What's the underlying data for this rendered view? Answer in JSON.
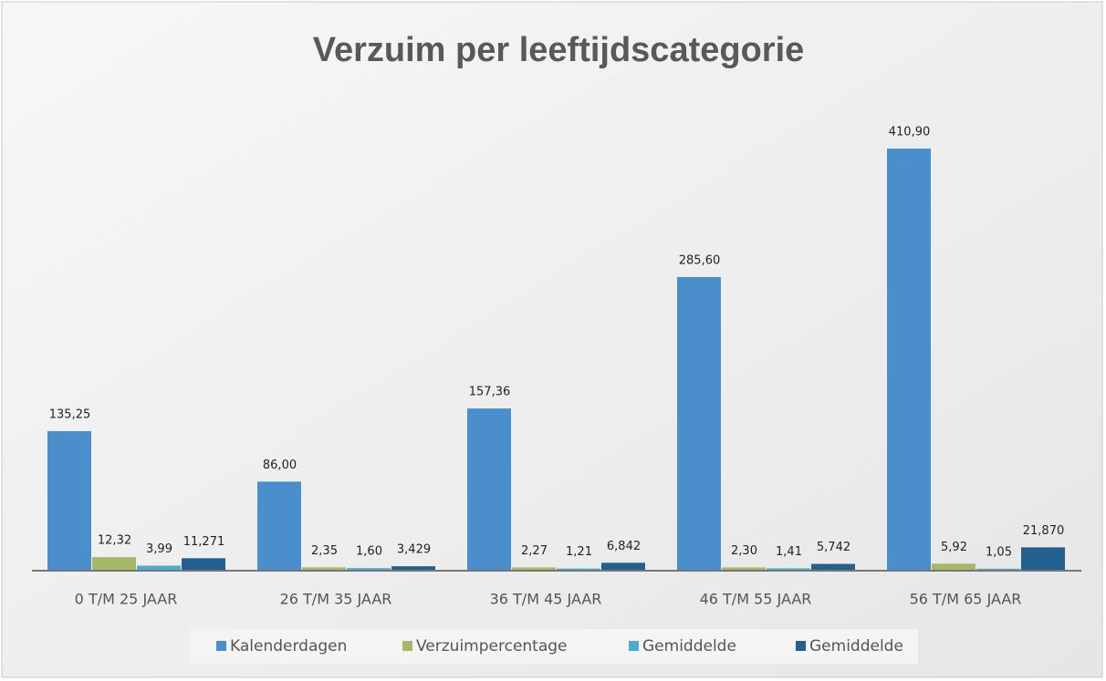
{
  "chart_data": {
    "type": "bar",
    "title": "Verzuim per leeftijdscategorie",
    "categories": [
      "0 T/M 25 JAAR",
      "26 T/M 35 JAAR",
      "36 T/M 45 JAAR",
      "46 T/M 55 JAAR",
      "56 T/M 65 JAAR"
    ],
    "series": [
      {
        "name": "Kalenderdagen",
        "color": "#4a8fcb",
        "values": [
          135.25,
          86.0,
          157.36,
          285.6,
          410.9
        ],
        "value_labels": [
          "135,25",
          "86,00",
          "157,36",
          "285,60",
          "410,90"
        ]
      },
      {
        "name": "Verzuimpercentage",
        "color": "#a4b868",
        "values": [
          12.32,
          2.35,
          2.27,
          2.3,
          5.92
        ],
        "value_labels": [
          "12,32",
          "2,35",
          "2,27",
          "2,30",
          "5,92"
        ]
      },
      {
        "name": "Gemiddelde",
        "color": "#4bacd0",
        "values": [
          3.99,
          1.6,
          1.21,
          1.41,
          1.05
        ],
        "value_labels": [
          "3,99",
          "1,60",
          "1,21",
          "1,41",
          "1,05"
        ]
      },
      {
        "name": "Gemiddelde",
        "color": "#22608f",
        "values": [
          11.271,
          3.429,
          6.842,
          5.742,
          21.87
        ],
        "value_labels": [
          "11,271",
          "3,429",
          "6,842",
          "5,742",
          "21,870"
        ]
      }
    ],
    "legend": "bottom"
  }
}
